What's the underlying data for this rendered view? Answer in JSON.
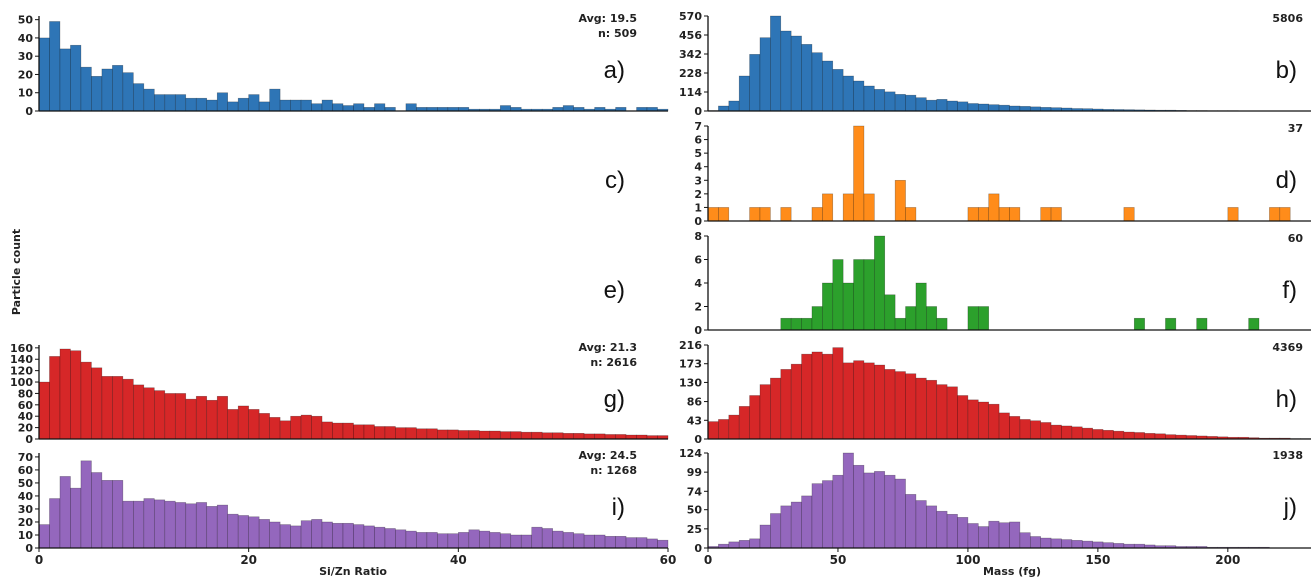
{
  "figure": {
    "ylabel": "Particle count",
    "left_xlabel": "Si/Zn Ratio",
    "right_xlabel": "Mass (fg)",
    "left_xticks": [
      "0",
      "20",
      "40",
      "60"
    ],
    "right_xticks": [
      "0",
      "50",
      "100",
      "150",
      "200"
    ]
  },
  "panels": [
    {
      "id": "a",
      "label": "a)",
      "side": "left",
      "color": "#2e75b6",
      "stats": [
        "Avg: 19.5",
        "n: 509"
      ],
      "yticks": [
        "0",
        "10",
        "20",
        "30",
        "40",
        "50"
      ]
    },
    {
      "id": "b",
      "label": "b)",
      "side": "right",
      "color": "#2e75b6",
      "stats": [
        "5806"
      ],
      "yticks": [
        "0",
        "114",
        "228",
        "342",
        "456",
        "570"
      ]
    },
    {
      "id": "c",
      "label": "c)",
      "side": "left",
      "empty": true
    },
    {
      "id": "d",
      "label": "d)",
      "side": "right",
      "color": "#ff8c1a",
      "stats": [
        "37"
      ],
      "yticks": [
        "0",
        "1",
        "2",
        "3",
        "4",
        "5",
        "6",
        "7"
      ]
    },
    {
      "id": "e",
      "label": "e)",
      "side": "left",
      "empty": true
    },
    {
      "id": "f",
      "label": "f)",
      "side": "right",
      "color": "#2ca02c",
      "stats": [
        "60"
      ],
      "yticks": [
        "0",
        "2",
        "4",
        "6",
        "8"
      ]
    },
    {
      "id": "g",
      "label": "g)",
      "side": "left",
      "color": "#d62728",
      "stats": [
        "Avg: 21.3",
        "n: 2616"
      ],
      "yticks": [
        "0",
        "20",
        "40",
        "60",
        "80",
        "100",
        "120",
        "140",
        "160"
      ]
    },
    {
      "id": "h",
      "label": "h)",
      "side": "right",
      "color": "#d62728",
      "stats": [
        "4369"
      ],
      "yticks": [
        "0",
        "43",
        "86",
        "130",
        "173",
        "216"
      ]
    },
    {
      "id": "i",
      "label": "i)",
      "side": "left",
      "color": "#9467bd",
      "stats": [
        "Avg: 24.5",
        "n: 1268"
      ],
      "yticks": [
        "0",
        "10",
        "20",
        "30",
        "40",
        "50",
        "60",
        "70"
      ]
    },
    {
      "id": "j",
      "label": "j)",
      "side": "right",
      "color": "#9467bd",
      "stats": [
        "1938"
      ],
      "yticks": [
        "0",
        "25",
        "50",
        "74",
        "99",
        "124"
      ]
    }
  ],
  "chart_data": [
    {
      "id": "a",
      "type": "bar",
      "xlabel": "Si/Zn Ratio",
      "ylabel": "Particle count",
      "xlim": [
        0,
        60
      ],
      "ylim": [
        0,
        52
      ],
      "bin_width": 1,
      "values": [
        40,
        49,
        34,
        36,
        24,
        19,
        23,
        25,
        21,
        15,
        12,
        9,
        9,
        9,
        7,
        7,
        6,
        10,
        5,
        7,
        9,
        5,
        12,
        6,
        6,
        6,
        4,
        6,
        4,
        3,
        4,
        2,
        4,
        2,
        0,
        4,
        2,
        2,
        2,
        2,
        2,
        1,
        1,
        1,
        3,
        2,
        1,
        1,
        1,
        2,
        3,
        2,
        1,
        2,
        1,
        2,
        0,
        2,
        2,
        1
      ]
    },
    {
      "id": "b",
      "type": "bar",
      "xlabel": "Mass (fg)",
      "ylabel": "Particle count",
      "xlim": [
        0,
        232
      ],
      "ylim": [
        0,
        570
      ],
      "bin_width": 4,
      "values": [
        3,
        30,
        60,
        210,
        340,
        440,
        570,
        480,
        450,
        400,
        350,
        300,
        250,
        210,
        180,
        150,
        130,
        115,
        100,
        95,
        80,
        65,
        70,
        60,
        55,
        45,
        42,
        38,
        35,
        30,
        28,
        25,
        22,
        20,
        18,
        15,
        14,
        12,
        10,
        9,
        8,
        7,
        6,
        5,
        5,
        4,
        3,
        3,
        2,
        2,
        2,
        1,
        1,
        1,
        1,
        1,
        0,
        0
      ]
    },
    {
      "id": "d",
      "type": "bar",
      "xlabel": "Mass (fg)",
      "ylabel": "Particle count",
      "xlim": [
        0,
        232
      ],
      "ylim": [
        0,
        7
      ],
      "bin_width": 4,
      "values": [
        1,
        1,
        0,
        0,
        1,
        1,
        0,
        1,
        0,
        0,
        1,
        2,
        0,
        2,
        7,
        2,
        0,
        0,
        3,
        1,
        0,
        0,
        0,
        0,
        0,
        1,
        1,
        2,
        1,
        1,
        0,
        0,
        1,
        1,
        0,
        0,
        0,
        0,
        0,
        0,
        1,
        0,
        0,
        0,
        0,
        0,
        0,
        0,
        0,
        0,
        1,
        0,
        0,
        0,
        1,
        1,
        0,
        0
      ]
    },
    {
      "id": "f",
      "type": "bar",
      "xlabel": "Mass (fg)",
      "ylabel": "Particle count",
      "xlim": [
        0,
        232
      ],
      "ylim": [
        0,
        8
      ],
      "bin_width": 4,
      "values": [
        0,
        0,
        0,
        0,
        0,
        0,
        0,
        1,
        1,
        1,
        2,
        4,
        6,
        4,
        6,
        6,
        8,
        3,
        1,
        2,
        4,
        2,
        1,
        0,
        0,
        2,
        2,
        0,
        0,
        0,
        0,
        0,
        0,
        0,
        0,
        0,
        0,
        0,
        0,
        0,
        0,
        1,
        0,
        0,
        1,
        0,
        0,
        1,
        0,
        0,
        0,
        0,
        1,
        0,
        0,
        0,
        0,
        0
      ]
    },
    {
      "id": "g",
      "type": "bar",
      "xlabel": "Si/Zn Ratio",
      "ylabel": "Particle count",
      "xlim": [
        0,
        60
      ],
      "ylim": [
        0,
        165
      ],
      "bin_width": 1,
      "values": [
        100,
        145,
        158,
        155,
        135,
        125,
        110,
        110,
        105,
        95,
        90,
        85,
        80,
        80,
        70,
        75,
        68,
        75,
        52,
        58,
        52,
        45,
        38,
        32,
        40,
        42,
        40,
        30,
        28,
        28,
        25,
        25,
        22,
        22,
        20,
        20,
        18,
        18,
        16,
        16,
        15,
        15,
        14,
        14,
        13,
        13,
        12,
        12,
        11,
        11,
        10,
        10,
        9,
        9,
        8,
        8,
        7,
        7,
        6,
        6
      ]
    },
    {
      "id": "h",
      "type": "bar",
      "xlabel": "Mass (fg)",
      "ylabel": "Particle count",
      "xlim": [
        0,
        232
      ],
      "ylim": [
        0,
        216
      ],
      "bin_width": 4,
      "values": [
        40,
        45,
        55,
        75,
        100,
        125,
        140,
        160,
        172,
        195,
        200,
        195,
        210,
        175,
        180,
        175,
        170,
        160,
        155,
        150,
        140,
        135,
        125,
        120,
        100,
        90,
        85,
        80,
        60,
        52,
        45,
        42,
        38,
        32,
        30,
        28,
        25,
        22,
        20,
        18,
        16,
        15,
        13,
        12,
        10,
        9,
        8,
        7,
        6,
        5,
        4,
        4,
        3,
        2,
        2,
        2,
        1,
        1
      ]
    },
    {
      "id": "i",
      "type": "bar",
      "xlabel": "Si/Zn Ratio",
      "ylabel": "Particle count",
      "xlim": [
        0,
        60
      ],
      "ylim": [
        0,
        73
      ],
      "bin_width": 1,
      "values": [
        18,
        38,
        55,
        46,
        67,
        58,
        52,
        52,
        36,
        36,
        38,
        37,
        36,
        35,
        34,
        35,
        32,
        33,
        26,
        25,
        24,
        22,
        20,
        18,
        17,
        21,
        22,
        20,
        19,
        19,
        18,
        17,
        16,
        15,
        14,
        13,
        12,
        12,
        11,
        11,
        12,
        14,
        13,
        12,
        11,
        10,
        10,
        16,
        15,
        13,
        12,
        11,
        10,
        10,
        9,
        9,
        8,
        8,
        7,
        6
      ]
    },
    {
      "id": "j",
      "type": "bar",
      "xlabel": "Mass (fg)",
      "ylabel": "Particle count",
      "xlim": [
        0,
        232
      ],
      "ylim": [
        0,
        124
      ],
      "bin_width": 4,
      "values": [
        2,
        5,
        8,
        10,
        12,
        30,
        45,
        55,
        60,
        68,
        84,
        88,
        95,
        124,
        108,
        98,
        100,
        95,
        90,
        70,
        62,
        55,
        48,
        44,
        40,
        32,
        28,
        35,
        33,
        34,
        20,
        15,
        13,
        12,
        11,
        10,
        9,
        8,
        7,
        6,
        5,
        5,
        4,
        3,
        3,
        2,
        2,
        2,
        1,
        1,
        1,
        1,
        1,
        1,
        0,
        0,
        0,
        0
      ]
    }
  ]
}
